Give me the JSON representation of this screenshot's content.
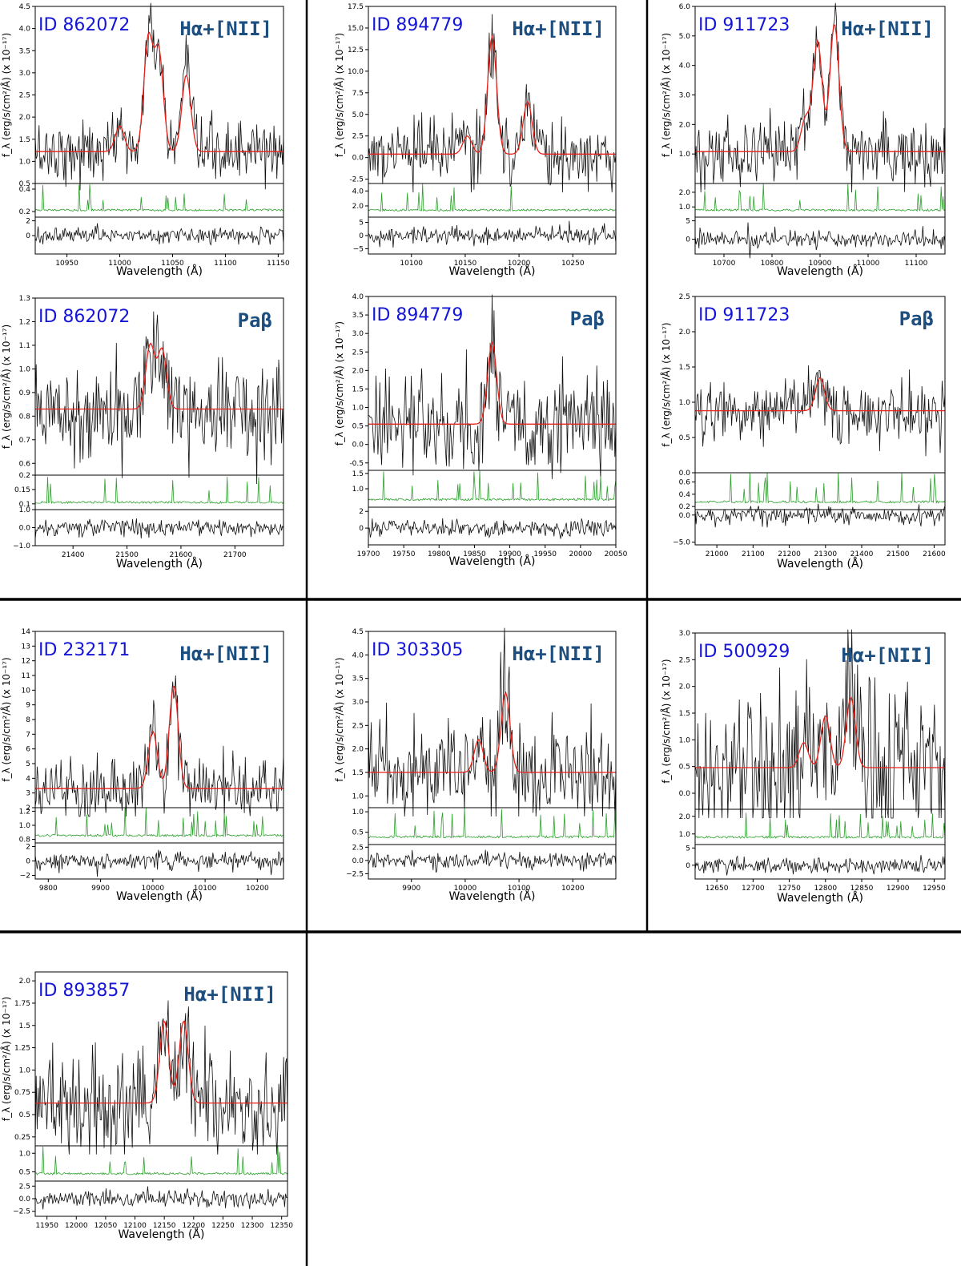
{
  "chart_data": [
    {
      "type": "line",
      "id_label": "ID 862072",
      "line_label": "Hα+[NII]",
      "xlabel": "Wavelength (Å)",
      "ylabel": "f_λ (erg/s/cm²/Å) (x 10⁻¹⁷)",
      "xlim": [
        10920,
        11155
      ],
      "ylim": [
        0.5,
        4.5
      ],
      "xticks": [
        10950,
        11000,
        11050,
        11100,
        11150
      ],
      "yticks": [
        0.5,
        1.0,
        1.5,
        2.0,
        2.5,
        3.0,
        3.5,
        4.0,
        4.5
      ],
      "ytick_labels": [
        "0.5",
        "1.0",
        "1.5",
        "2.0",
        "2.5",
        "3.0",
        "3.5",
        "4.0",
        "4.5"
      ],
      "continuum": 1.22,
      "model_peaks": [
        {
          "x": 11000,
          "y": 1.8
        },
        {
          "x": 11027,
          "y": 3.75
        },
        {
          "x": 11037,
          "y": 3.45
        },
        {
          "x": 11063,
          "y": 2.95
        }
      ],
      "noise_level": 0.35,
      "sky_ticks": [
        0.2,
        0.4
      ],
      "sky_tick_labels": [
        "0.2",
        "0.4"
      ],
      "sky_ylim": [
        0.15,
        0.45
      ],
      "resid_ticks": [
        0,
        2
      ],
      "resid_tick_labels": [
        "0",
        "2"
      ],
      "resid_ylim": [
        -2.5,
        2.5
      ]
    },
    {
      "type": "line",
      "id_label": "ID 894779",
      "line_label": "Hα+[NII]",
      "xlabel": "Wavelength (Å)",
      "ylabel": "f_λ (erg/s/cm²/Å) (x 10⁻¹⁷)",
      "xlim": [
        10060,
        10290
      ],
      "ylim": [
        -3,
        17.5
      ],
      "xticks": [
        10100,
        10150,
        10200,
        10250
      ],
      "yticks": [
        -2.5,
        0,
        2.5,
        5,
        7.5,
        10,
        12.5,
        15,
        17.5
      ],
      "ytick_labels": [
        "-2.5",
        "0.0",
        "2.5",
        "5.0",
        "7.5",
        "10.0",
        "12.5",
        "15.0",
        "17.5"
      ],
      "continuum": 0.4,
      "model_peaks": [
        {
          "x": 10152,
          "y": 2.5
        },
        {
          "x": 10175,
          "y": 14
        },
        {
          "x": 10208,
          "y": 6.5
        }
      ],
      "noise_level": 2.0,
      "sky_ticks": [
        2.0,
        4.0
      ],
      "sky_tick_labels": [
        "2.0",
        "4.0"
      ],
      "sky_ylim": [
        0.5,
        5
      ],
      "resid_ticks": [
        -5,
        0,
        5
      ],
      "resid_tick_labels": [
        "−5",
        "0",
        "5"
      ],
      "resid_ylim": [
        -7,
        7
      ]
    },
    {
      "type": "line",
      "id_label": "ID 911723",
      "line_label": "Hα+[NII]",
      "xlabel": "Wavelength (Å)",
      "ylabel": "f_λ (erg/s/cm²/Å) (x 10⁻¹⁷)",
      "xlim": [
        10640,
        11160
      ],
      "ylim": [
        0,
        6
      ],
      "xticks": [
        10700,
        10800,
        10900,
        11000,
        11100
      ],
      "yticks": [
        1,
        2,
        3,
        4,
        5,
        6
      ],
      "ytick_labels": [
        "1.0",
        "2.0",
        "3.0",
        "4.0",
        "5.0",
        "6.0"
      ],
      "continuum": 1.08,
      "model_peaks": [
        {
          "x": 10870,
          "y": 2.2
        },
        {
          "x": 10895,
          "y": 4.8
        },
        {
          "x": 10930,
          "y": 5.4
        }
      ],
      "noise_level": 0.55,
      "sky_ticks": [
        1.0,
        2.0
      ],
      "sky_tick_labels": [
        "1.0",
        "2.0"
      ],
      "sky_ylim": [
        0.3,
        2.6
      ],
      "resid_ticks": [
        0,
        5
      ],
      "resid_tick_labels": [
        "0",
        "5"
      ],
      "resid_ylim": [
        -4,
        6
      ]
    },
    {
      "type": "line",
      "id_label": "ID 862072",
      "line_label": "Paβ",
      "xlabel": "Wavelength (Å)",
      "ylabel": "f_λ (erg/s/cm²/Å) (x 10⁻¹⁷)",
      "xlim": [
        21330,
        21790
      ],
      "ylim": [
        0.55,
        1.3
      ],
      "xticks": [
        21400,
        21500,
        21600,
        21700
      ],
      "yticks": [
        0.6,
        0.7,
        0.8,
        0.9,
        1.0,
        1.1,
        1.2,
        1.3
      ],
      "ytick_labels": [
        "0.6",
        "0.7",
        "0.8",
        "0.9",
        "1.0",
        "1.1",
        "1.2",
        "1.3"
      ],
      "continuum": 0.83,
      "model_peaks": [
        {
          "x": 21543,
          "y": 1.1
        },
        {
          "x": 21565,
          "y": 1.08
        }
      ],
      "noise_level": 0.11,
      "sky_ticks": [
        0.1,
        0.15,
        0.2
      ],
      "sky_tick_labels": [
        "0.1",
        "0.15",
        "0.2"
      ],
      "sky_ylim": [
        0.08,
        0.2
      ],
      "resid_ticks": [
        -1,
        0,
        1
      ],
      "resid_tick_labels": [
        "−1.0",
        "0.0",
        "1.0"
      ],
      "resid_ylim": [
        -1,
        1
      ]
    },
    {
      "type": "line",
      "id_label": "ID 894779",
      "line_label": "Paβ",
      "xlabel": "Wavelength (Å)",
      "ylabel": "f_λ (erg/s/cm²/Å) (x 10⁻¹⁷)",
      "xlim": [
        19700,
        20050
      ],
      "ylim": [
        -0.7,
        4
      ],
      "xticks": [
        19700,
        19750,
        19800,
        19850,
        19900,
        19950,
        20000,
        20050
      ],
      "yticks": [
        -0.5,
        0,
        0.5,
        1,
        1.5,
        2,
        2.5,
        3,
        3.5,
        4
      ],
      "ytick_labels": [
        "-0.5",
        "0.0",
        "0.5",
        "1.0",
        "1.5",
        "2.0",
        "2.5",
        "3.0",
        "3.5",
        "4.0"
      ],
      "continuum": 0.55,
      "model_peaks": [
        {
          "x": 19875,
          "y": 2.75
        }
      ],
      "noise_level": 0.7,
      "sky_ticks": [
        1.0,
        1.5
      ],
      "sky_tick_labels": [
        "1.0",
        "1.5"
      ],
      "sky_ylim": [
        0.4,
        1.6
      ],
      "resid_ticks": [
        0,
        2
      ],
      "resid_tick_labels": [
        "0",
        "2"
      ],
      "resid_ylim": [
        -2,
        2.5
      ]
    },
    {
      "type": "line",
      "id_label": "ID 911723",
      "line_label": "Paβ",
      "xlabel": "Wavelength (Å)",
      "ylabel": "f_λ (erg/s/cm²/Å) (x 10⁻¹⁷)",
      "xlim": [
        20940,
        21630
      ],
      "ylim": [
        0,
        2.5
      ],
      "xticks": [
        21000,
        21100,
        21200,
        21300,
        21400,
        21500,
        21600
      ],
      "yticks": [
        0,
        0.5,
        1,
        1.5,
        2,
        2.5
      ],
      "ytick_labels": [
        "0.0",
        "0.5",
        "1.0",
        "1.5",
        "2.0",
        "2.5"
      ],
      "continuum": 0.88,
      "model_peaks": [
        {
          "x": 21285,
          "y": 1.35
        }
      ],
      "noise_level": 0.22,
      "sky_ticks": [
        0.2,
        0.4,
        0.6
      ],
      "sky_tick_labels": [
        "0.2",
        "0.4",
        "0.6"
      ],
      "sky_ylim": [
        0.15,
        0.75
      ],
      "resid_ticks": [
        -5,
        0
      ],
      "resid_tick_labels": [
        "−5.0",
        "0.0"
      ],
      "resid_ylim": [
        -5.5,
        1
      ]
    },
    {
      "type": "line",
      "id_label": "ID 232171",
      "line_label": "Hα+[NII]",
      "xlabel": "Wavelength (Å)",
      "ylabel": "f_λ (erg/s/cm²/Å) (x 10⁻¹⁷)",
      "xlim": [
        9775,
        10250
      ],
      "ylim": [
        2,
        14
      ],
      "xticks": [
        9800,
        9900,
        10000,
        10100,
        10200
      ],
      "yticks": [
        2,
        3,
        4,
        5,
        6,
        7,
        8,
        9,
        10,
        11,
        12,
        13,
        14
      ],
      "ytick_labels": [
        "2",
        "3",
        "4",
        "5",
        "6",
        "7",
        "8",
        "9",
        "10",
        "11",
        "12",
        "13",
        "14"
      ],
      "continuum": 3.3,
      "model_peaks": [
        {
          "x": 10000,
          "y": 7.2
        },
        {
          "x": 10040,
          "y": 10.3
        }
      ],
      "noise_level": 1.1,
      "sky_ticks": [
        0.8,
        1.0,
        1.2
      ],
      "sky_tick_labels": [
        "0.8",
        "1.0",
        "1.2"
      ],
      "sky_ylim": [
        0.75,
        1.25
      ],
      "resid_ticks": [
        -2,
        0,
        2
      ],
      "resid_tick_labels": [
        "−2",
        "0",
        "2"
      ],
      "resid_ylim": [
        -2.5,
        2.5
      ]
    },
    {
      "type": "line",
      "id_label": "ID 303305",
      "line_label": "Hα+[NII]",
      "xlabel": "Wavelength (Å)",
      "ylabel": "f_λ (erg/s/cm²/Å) (x 10⁻¹⁷)",
      "xlim": [
        9820,
        10280
      ],
      "ylim": [
        0.75,
        4.5
      ],
      "xticks": [
        9900,
        10000,
        10100,
        10200
      ],
      "yticks": [
        1,
        1.5,
        2,
        2.5,
        3,
        3.5,
        4,
        4.5
      ],
      "ytick_labels": [
        "1.0",
        "1.5",
        "2.0",
        "2.5",
        "3.0",
        "3.5",
        "4.0",
        "4.5"
      ],
      "continuum": 1.5,
      "model_peaks": [
        {
          "x": 10025,
          "y": 2.2
        },
        {
          "x": 10075,
          "y": 3.2
        }
      ],
      "noise_level": 0.55,
      "sky_ticks": [
        0.5,
        1.0
      ],
      "sky_tick_labels": [
        "0.5",
        "1.0"
      ],
      "sky_ylim": [
        0.2,
        1.1
      ],
      "resid_ticks": [
        -2.5,
        0,
        2.5
      ],
      "resid_tick_labels": [
        "−2.5",
        "0.0",
        "2.5"
      ],
      "resid_ylim": [
        -3.5,
        3
      ]
    },
    {
      "type": "line",
      "id_label": "ID 500929",
      "line_label": "Hα+[NII]",
      "xlabel": "Wavelength (Å)",
      "ylabel": "f_λ (erg/s/cm²/Å) (x 10⁻¹⁷)",
      "xlim": [
        12620,
        12965
      ],
      "ylim": [
        -0.3,
        3
      ],
      "xticks": [
        12650,
        12700,
        12750,
        12800,
        12850,
        12900,
        12950
      ],
      "yticks": [
        0,
        0.5,
        1,
        1.5,
        2,
        2.5,
        3
      ],
      "ytick_labels": [
        "0.0",
        "0.5",
        "1.0",
        "1.5",
        "2.0",
        "2.5",
        "3.0"
      ],
      "continuum": 0.48,
      "model_peaks": [
        {
          "x": 12770,
          "y": 0.95
        },
        {
          "x": 12800,
          "y": 1.45
        },
        {
          "x": 12835,
          "y": 1.8
        }
      ],
      "noise_level": 0.75,
      "sky_ticks": [
        1.0,
        2.0
      ],
      "sky_tick_labels": [
        "1.0",
        "2.0"
      ],
      "sky_ylim": [
        0.4,
        2.4
      ],
      "resid_ticks": [
        0,
        5
      ],
      "resid_tick_labels": [
        "0",
        "5"
      ],
      "resid_ylim": [
        -4,
        6
      ]
    },
    {
      "type": "line",
      "id_label": "ID 893857",
      "line_label": "Hα+[NII]",
      "xlabel": "Wavelength (Å)",
      "ylabel": "f_λ (erg/s/cm²/Å) (x 10⁻¹⁷)",
      "xlim": [
        11930,
        12360
      ],
      "ylim": [
        0.15,
        2.1
      ],
      "xticks": [
        11950,
        12000,
        12050,
        12100,
        12150,
        12200,
        12250,
        12300,
        12350
      ],
      "yticks": [
        0.25,
        0.5,
        0.75,
        1,
        1.25,
        1.5,
        1.75,
        2
      ],
      "ytick_labels": [
        "0.25",
        "0.5",
        "0.75",
        "1.0",
        "1.25",
        "1.5",
        "1.75",
        "2.0"
      ],
      "continuum": 0.63,
      "model_peaks": [
        {
          "x": 12150,
          "y": 1.55
        },
        {
          "x": 12183,
          "y": 1.55
        }
      ],
      "noise_level": 0.3,
      "sky_ticks": [
        0.5,
        1.0
      ],
      "sky_tick_labels": [
        "0.5",
        "1.0"
      ],
      "sky_ylim": [
        0.25,
        1.2
      ],
      "resid_ticks": [
        -2.5,
        0,
        2.5
      ],
      "resid_tick_labels": [
        "−2.5",
        "0.0",
        "2.5"
      ],
      "resid_ylim": [
        -3.5,
        3.5
      ]
    }
  ]
}
